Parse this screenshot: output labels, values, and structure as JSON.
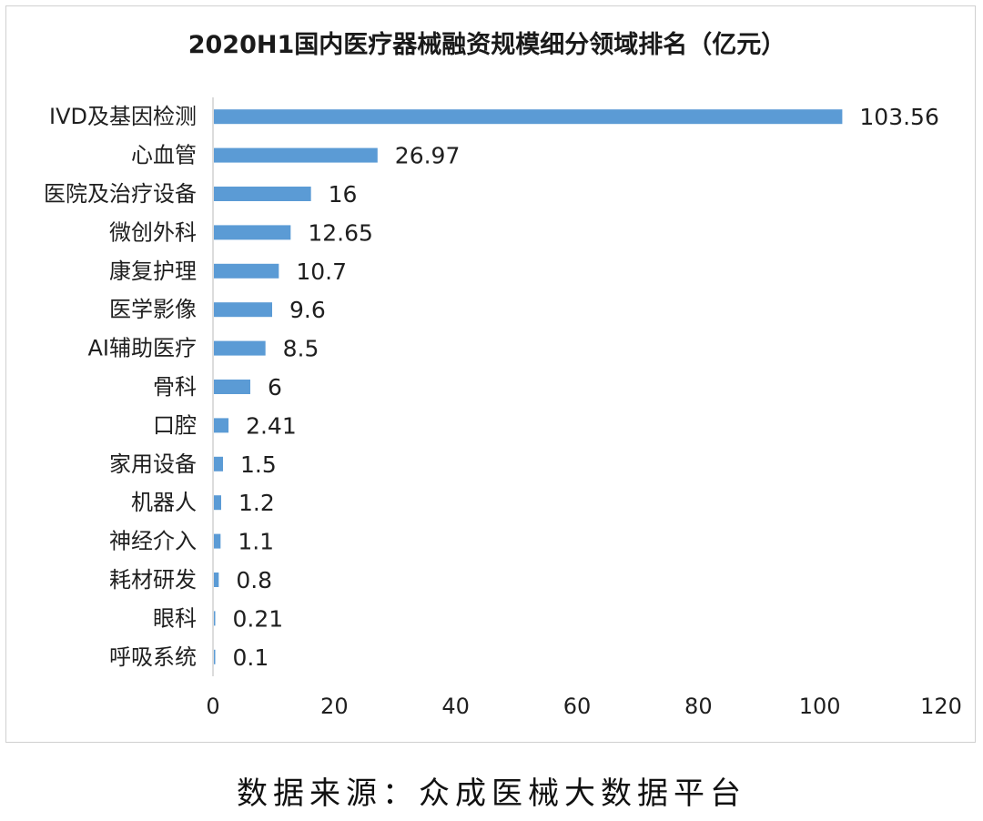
{
  "chart_data": {
    "type": "bar",
    "orientation": "horizontal",
    "title": "2020H1国内医疗器械融资规模细分领域排名（亿元）",
    "categories": [
      "IVD及基因检测",
      "心血管",
      "医院及治疗设备",
      "微创外科",
      "康复护理",
      "医学影像",
      "AI辅助医疗",
      "骨科",
      "口腔",
      "家用设备",
      "机器人",
      "神经介入",
      "耗材研发",
      "眼科",
      "呼吸系统"
    ],
    "values": [
      103.56,
      26.97,
      16,
      12.65,
      10.7,
      9.6,
      8.5,
      6,
      2.41,
      1.5,
      1.2,
      1.1,
      0.8,
      0.21,
      0.1
    ],
    "value_labels": [
      "103.56",
      "26.97",
      "16",
      "12.65",
      "10.7",
      "9.6",
      "8.5",
      "6",
      "2.41",
      "1.5",
      "1.2",
      "1.1",
      "0.8",
      "0.21",
      "0.1"
    ],
    "xlim": [
      0,
      120
    ],
    "x_ticks": [
      "0",
      "20",
      "40",
      "60",
      "80",
      "100",
      "120"
    ],
    "bar_color": "#5b9bd5",
    "grid": false,
    "legend": "none",
    "xlabel": "",
    "ylabel": ""
  },
  "source": "数据来源：众成医械大数据平台"
}
